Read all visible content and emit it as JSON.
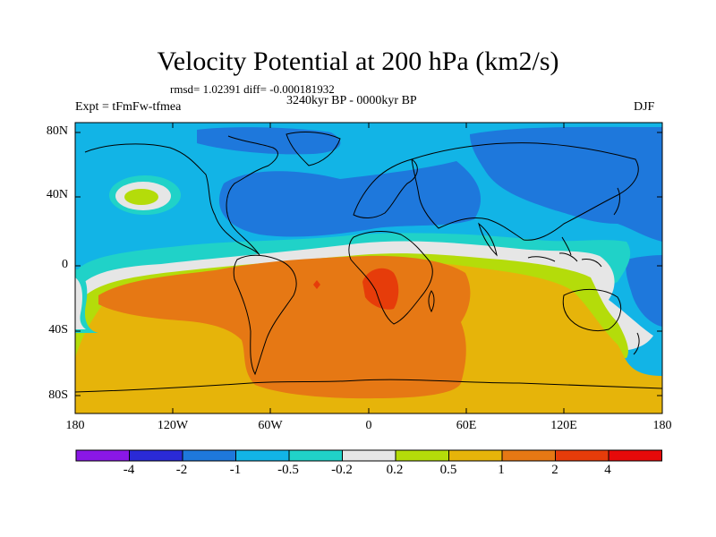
{
  "title": "Velocity Potential at 200 hPa (km2/s)",
  "stats": "rmsd= 1.02391 diff= -0.000181932",
  "left_label": "Expt = tFmFw-tfmea",
  "center_label": "3240kyr BP - 0000kyr BP",
  "right_label": "DJF",
  "lat_ticks": [
    "80N",
    "40N",
    "0",
    "40S",
    "80S"
  ],
  "lon_ticks": [
    "180",
    "120W",
    "60W",
    "0",
    "60E",
    "120E",
    "180"
  ],
  "colorbar": {
    "labels": [
      "-4",
      "-2",
      "-1",
      "-0.5",
      "-0.2",
      "0.2",
      "0.5",
      "1",
      "2",
      "4"
    ],
    "colors": [
      "#8a17e6",
      "#2a2ad6",
      "#1e78dc",
      "#12b4e6",
      "#20d2c8",
      "#e6e6e6",
      "#b4dc0a",
      "#e6b40a",
      "#e67814",
      "#e63c0a",
      "#e60a0a"
    ]
  },
  "fill_colors": {
    "blue_dark": "#1e78dc",
    "blue_mid": "#12b4e6",
    "teal": "#20d2c8",
    "neutral": "#e6e6e6",
    "yellow_green": "#b4dc0a",
    "yellow": "#e6b40a",
    "orange": "#e67814",
    "red_orange": "#e63c0a"
  }
}
